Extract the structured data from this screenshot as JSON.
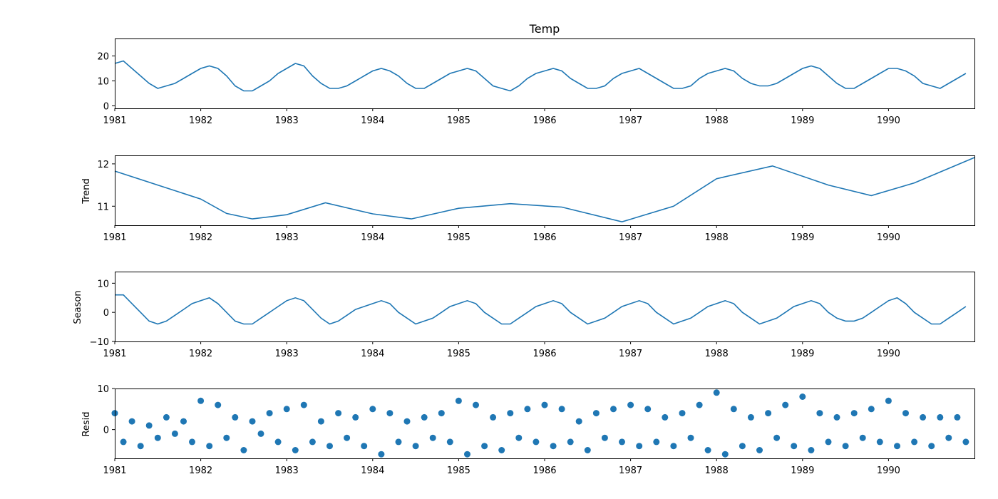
{
  "chart_data": [
    {
      "type": "line",
      "title": "Temp",
      "xlabel": "",
      "ylabel": "",
      "xlim": [
        1981.0,
        1991.0
      ],
      "ylim": [
        -1,
        27
      ],
      "yticks": [
        0,
        10,
        20
      ],
      "xticks": [
        "1981",
        "1982",
        "1983",
        "1984",
        "1985",
        "1986",
        "1987",
        "1988",
        "1989",
        "1990"
      ],
      "color": "#1f77b4",
      "series": [
        {
          "x": [
            1981.0,
            1981.1,
            1981.2,
            1981.3,
            1981.4,
            1981.5,
            1981.6,
            1981.7,
            1981.8,
            1981.9,
            1982.0,
            1982.1,
            1982.2,
            1982.3,
            1982.4,
            1982.5,
            1982.6,
            1982.7,
            1982.8,
            1982.9,
            1983.0,
            1983.1,
            1983.2,
            1983.3,
            1983.4,
            1983.5,
            1983.6,
            1983.7,
            1983.8,
            1983.9,
            1984.0,
            1984.1,
            1984.2,
            1984.3,
            1984.4,
            1984.5,
            1984.6,
            1984.7,
            1984.8,
            1984.9,
            1985.0,
            1985.1,
            1985.2,
            1985.3,
            1985.4,
            1985.5,
            1985.6,
            1985.7,
            1985.8,
            1985.9,
            1986.0,
            1986.1,
            1986.2,
            1986.3,
            1986.4,
            1986.5,
            1986.6,
            1986.7,
            1986.8,
            1986.9,
            1987.0,
            1987.1,
            1987.2,
            1987.3,
            1987.4,
            1987.5,
            1987.6,
            1987.7,
            1987.8,
            1987.9,
            1988.0,
            1988.1,
            1988.2,
            1988.3,
            1988.4,
            1988.5,
            1988.6,
            1988.7,
            1988.8,
            1988.9,
            1989.0,
            1989.1,
            1989.2,
            1989.3,
            1989.4,
            1989.5,
            1989.6,
            1989.7,
            1989.8,
            1989.9,
            1990.0,
            1990.1,
            1990.2,
            1990.3,
            1990.4,
            1990.5,
            1990.6,
            1990.7,
            1990.8,
            1990.9
          ],
          "y": [
            17,
            18,
            15,
            12,
            9,
            7,
            8,
            9,
            11,
            13,
            15,
            16,
            15,
            12,
            8,
            6,
            6,
            8,
            10,
            13,
            15,
            17,
            16,
            12,
            9,
            7,
            7,
            8,
            10,
            12,
            14,
            15,
            14,
            12,
            9,
            7,
            7,
            9,
            11,
            13,
            14,
            15,
            14,
            11,
            8,
            7,
            6,
            8,
            11,
            13,
            14,
            15,
            14,
            11,
            9,
            7,
            7,
            8,
            11,
            13,
            14,
            15,
            13,
            11,
            9,
            7,
            7,
            8,
            11,
            13,
            14,
            15,
            14,
            11,
            9,
            8,
            8,
            9,
            11,
            13,
            15,
            16,
            15,
            12,
            9,
            7,
            7,
            9,
            11,
            13,
            15,
            15,
            14,
            12,
            9,
            8,
            7,
            9,
            11,
            13
          ]
        }
      ]
    },
    {
      "type": "line",
      "title": "",
      "xlabel": "",
      "ylabel": "Trend",
      "xlim": [
        1981.0,
        1991.0
      ],
      "ylim": [
        10.55,
        12.2
      ],
      "yticks": [
        11,
        12
      ],
      "xticks": [
        "1981",
        "1982",
        "1983",
        "1984",
        "1985",
        "1986",
        "1987",
        "1988",
        "1989",
        "1990"
      ],
      "color": "#1f77b4",
      "series": [
        {
          "x": [
            1981.0,
            1981.5,
            1982.0,
            1982.3,
            1982.6,
            1983.0,
            1983.45,
            1984.0,
            1984.45,
            1985.0,
            1985.6,
            1986.2,
            1986.9,
            1987.5,
            1988.0,
            1988.65,
            1989.3,
            1989.8,
            1990.3,
            1991.0
          ],
          "y": [
            11.83,
            11.5,
            11.17,
            10.83,
            10.7,
            10.8,
            11.08,
            10.82,
            10.7,
            10.95,
            11.06,
            10.98,
            10.63,
            11.0,
            11.65,
            11.95,
            11.5,
            11.25,
            11.55,
            12.15
          ]
        }
      ]
    },
    {
      "type": "line",
      "title": "",
      "xlabel": "",
      "ylabel": "Season",
      "xlim": [
        1981.0,
        1991.0
      ],
      "ylim": [
        -10,
        14
      ],
      "yticks": [
        -10,
        0,
        10
      ],
      "xticks": [
        "1981",
        "1982",
        "1983",
        "1984",
        "1985",
        "1986",
        "1987",
        "1988",
        "1989",
        "1990"
      ],
      "color": "#1f77b4",
      "series": [
        {
          "x": [
            1981.0,
            1981.1,
            1981.2,
            1981.3,
            1981.4,
            1981.5,
            1981.6,
            1981.7,
            1981.8,
            1981.9,
            1982.0,
            1982.1,
            1982.2,
            1982.3,
            1982.4,
            1982.5,
            1982.6,
            1982.7,
            1982.8,
            1982.9,
            1983.0,
            1983.1,
            1983.2,
            1983.3,
            1983.4,
            1983.5,
            1983.6,
            1983.7,
            1983.8,
            1983.9,
            1984.0,
            1984.1,
            1984.2,
            1984.3,
            1984.4,
            1984.5,
            1984.6,
            1984.7,
            1984.8,
            1984.9,
            1985.0,
            1985.1,
            1985.2,
            1985.3,
            1985.4,
            1985.5,
            1985.6,
            1985.7,
            1985.8,
            1985.9,
            1986.0,
            1986.1,
            1986.2,
            1986.3,
            1986.4,
            1986.5,
            1986.6,
            1986.7,
            1986.8,
            1986.9,
            1987.0,
            1987.1,
            1987.2,
            1987.3,
            1987.4,
            1987.5,
            1987.6,
            1987.7,
            1987.8,
            1987.9,
            1988.0,
            1988.1,
            1988.2,
            1988.3,
            1988.4,
            1988.5,
            1988.6,
            1988.7,
            1988.8,
            1988.9,
            1989.0,
            1989.1,
            1989.2,
            1989.3,
            1989.4,
            1989.5,
            1989.6,
            1989.7,
            1989.8,
            1989.9,
            1990.0,
            1990.1,
            1990.2,
            1990.3,
            1990.4,
            1990.5,
            1990.6,
            1990.7,
            1990.8,
            1990.9
          ],
          "y": [
            6,
            6,
            3,
            0,
            -3,
            -4,
            -3,
            -1,
            1,
            3,
            4,
            5,
            3,
            0,
            -3,
            -4,
            -4,
            -2,
            0,
            2,
            4,
            5,
            4,
            1,
            -2,
            -4,
            -3,
            -1,
            1,
            2,
            3,
            4,
            3,
            0,
            -2,
            -4,
            -3,
            -2,
            0,
            2,
            3,
            4,
            3,
            0,
            -2,
            -4,
            -4,
            -2,
            0,
            2,
            3,
            4,
            3,
            0,
            -2,
            -4,
            -3,
            -2,
            0,
            2,
            3,
            4,
            3,
            0,
            -2,
            -4,
            -3,
            -2,
            0,
            2,
            3,
            4,
            3,
            0,
            -2,
            -4,
            -3,
            -2,
            0,
            2,
            3,
            4,
            3,
            0,
            -2,
            -3,
            -3,
            -2,
            0,
            2,
            4,
            5,
            3,
            0,
            -2,
            -4,
            -4,
            -2,
            0,
            2
          ]
        }
      ]
    },
    {
      "type": "scatter",
      "title": "",
      "xlabel": "",
      "ylabel": "Resid",
      "xlim": [
        1981.0,
        1991.0
      ],
      "ylim": [
        -7,
        10
      ],
      "yticks": [
        0,
        10
      ],
      "xticks": [
        "1981",
        "1982",
        "1983",
        "1984",
        "1985",
        "1986",
        "1987",
        "1988",
        "1989",
        "1990"
      ],
      "color": "#1f77b4",
      "series": [
        {
          "x": [
            1981.0,
            1981.1,
            1981.2,
            1981.3,
            1981.4,
            1981.5,
            1981.6,
            1981.7,
            1981.8,
            1981.9,
            1982.0,
            1982.1,
            1982.2,
            1982.3,
            1982.4,
            1982.5,
            1982.6,
            1982.7,
            1982.8,
            1982.9,
            1983.0,
            1983.1,
            1983.2,
            1983.3,
            1983.4,
            1983.5,
            1983.6,
            1983.7,
            1983.8,
            1983.9,
            1984.0,
            1984.1,
            1984.2,
            1984.3,
            1984.4,
            1984.5,
            1984.6,
            1984.7,
            1984.8,
            1984.9,
            1985.0,
            1985.1,
            1985.2,
            1985.3,
            1985.4,
            1985.5,
            1985.6,
            1985.7,
            1985.8,
            1985.9,
            1986.0,
            1986.1,
            1986.2,
            1986.3,
            1986.4,
            1986.5,
            1986.6,
            1986.7,
            1986.8,
            1986.9,
            1987.0,
            1987.1,
            1987.2,
            1987.3,
            1987.4,
            1987.5,
            1987.6,
            1987.7,
            1987.8,
            1987.9,
            1988.0,
            1988.1,
            1988.2,
            1988.3,
            1988.4,
            1988.5,
            1988.6,
            1988.7,
            1988.8,
            1988.9,
            1989.0,
            1989.1,
            1989.2,
            1989.3,
            1989.4,
            1989.5,
            1989.6,
            1989.7,
            1989.8,
            1989.9,
            1990.0,
            1990.1,
            1990.2,
            1990.3,
            1990.4,
            1990.5,
            1990.6,
            1990.7,
            1990.8,
            1990.9
          ],
          "y": [
            4,
            -3,
            2,
            -4,
            1,
            -2,
            3,
            -1,
            2,
            -3,
            7,
            -4,
            6,
            -2,
            3,
            -5,
            2,
            -1,
            4,
            -3,
            5,
            -5,
            6,
            -3,
            2,
            -4,
            4,
            -2,
            3,
            -4,
            5,
            -6,
            4,
            -3,
            2,
            -4,
            3,
            -2,
            4,
            -3,
            7,
            -6,
            6,
            -4,
            3,
            -5,
            4,
            -2,
            5,
            -3,
            6,
            -4,
            5,
            -3,
            2,
            -5,
            4,
            -2,
            5,
            -3,
            6,
            -4,
            5,
            -3,
            3,
            -4,
            4,
            -2,
            6,
            -5,
            9,
            -6,
            5,
            -4,
            3,
            -5,
            4,
            -2,
            6,
            -4,
            8,
            -5,
            4,
            -3,
            3,
            -4,
            4,
            -2,
            5,
            -3,
            7,
            -4,
            4,
            -3,
            3,
            -4,
            3,
            -2,
            3,
            -3
          ]
        }
      ]
    }
  ]
}
